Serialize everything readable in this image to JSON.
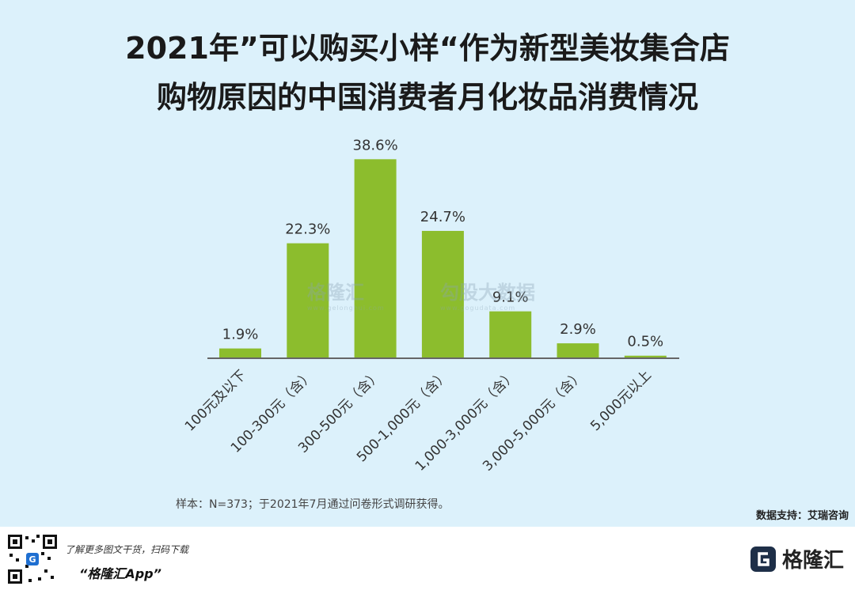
{
  "title_line1": "2021年”可以购买小样“作为新型美妆集合店",
  "title_line2": "购物原因的中国消费者月化妆品消费情况",
  "chart_data": {
    "type": "bar",
    "categories": [
      "100元及以下",
      "100-300元（含）",
      "300-500元（含）",
      "500-1,000元（含）",
      "1,000-3,000元（含）",
      "3,000-5,000元（含）",
      "5,000元以上"
    ],
    "values": [
      1.9,
      22.3,
      38.6,
      24.7,
      9.1,
      2.9,
      0.5
    ],
    "value_labels": [
      "1.9%",
      "22.3%",
      "38.6%",
      "24.7%",
      "9.1%",
      "2.9%",
      "0.5%"
    ],
    "ylim": [
      0,
      40
    ],
    "bar_color": "#8cbd2d"
  },
  "note": "样本：N=373；于2021年7月通过问卷形式调研获得。",
  "source": "数据支持：艾瑞咨询",
  "watermark": {
    "brand1": "格隆汇",
    "brand1_url": "www.gelonghui.com",
    "brand2": "勾股大数据",
    "brand2_url": "www.gogudata.com"
  },
  "footer": {
    "promo_line1": "了解更多图文干货，扫码下载",
    "promo_line2": "“格隆汇App”",
    "brand_name": "格隆汇"
  }
}
